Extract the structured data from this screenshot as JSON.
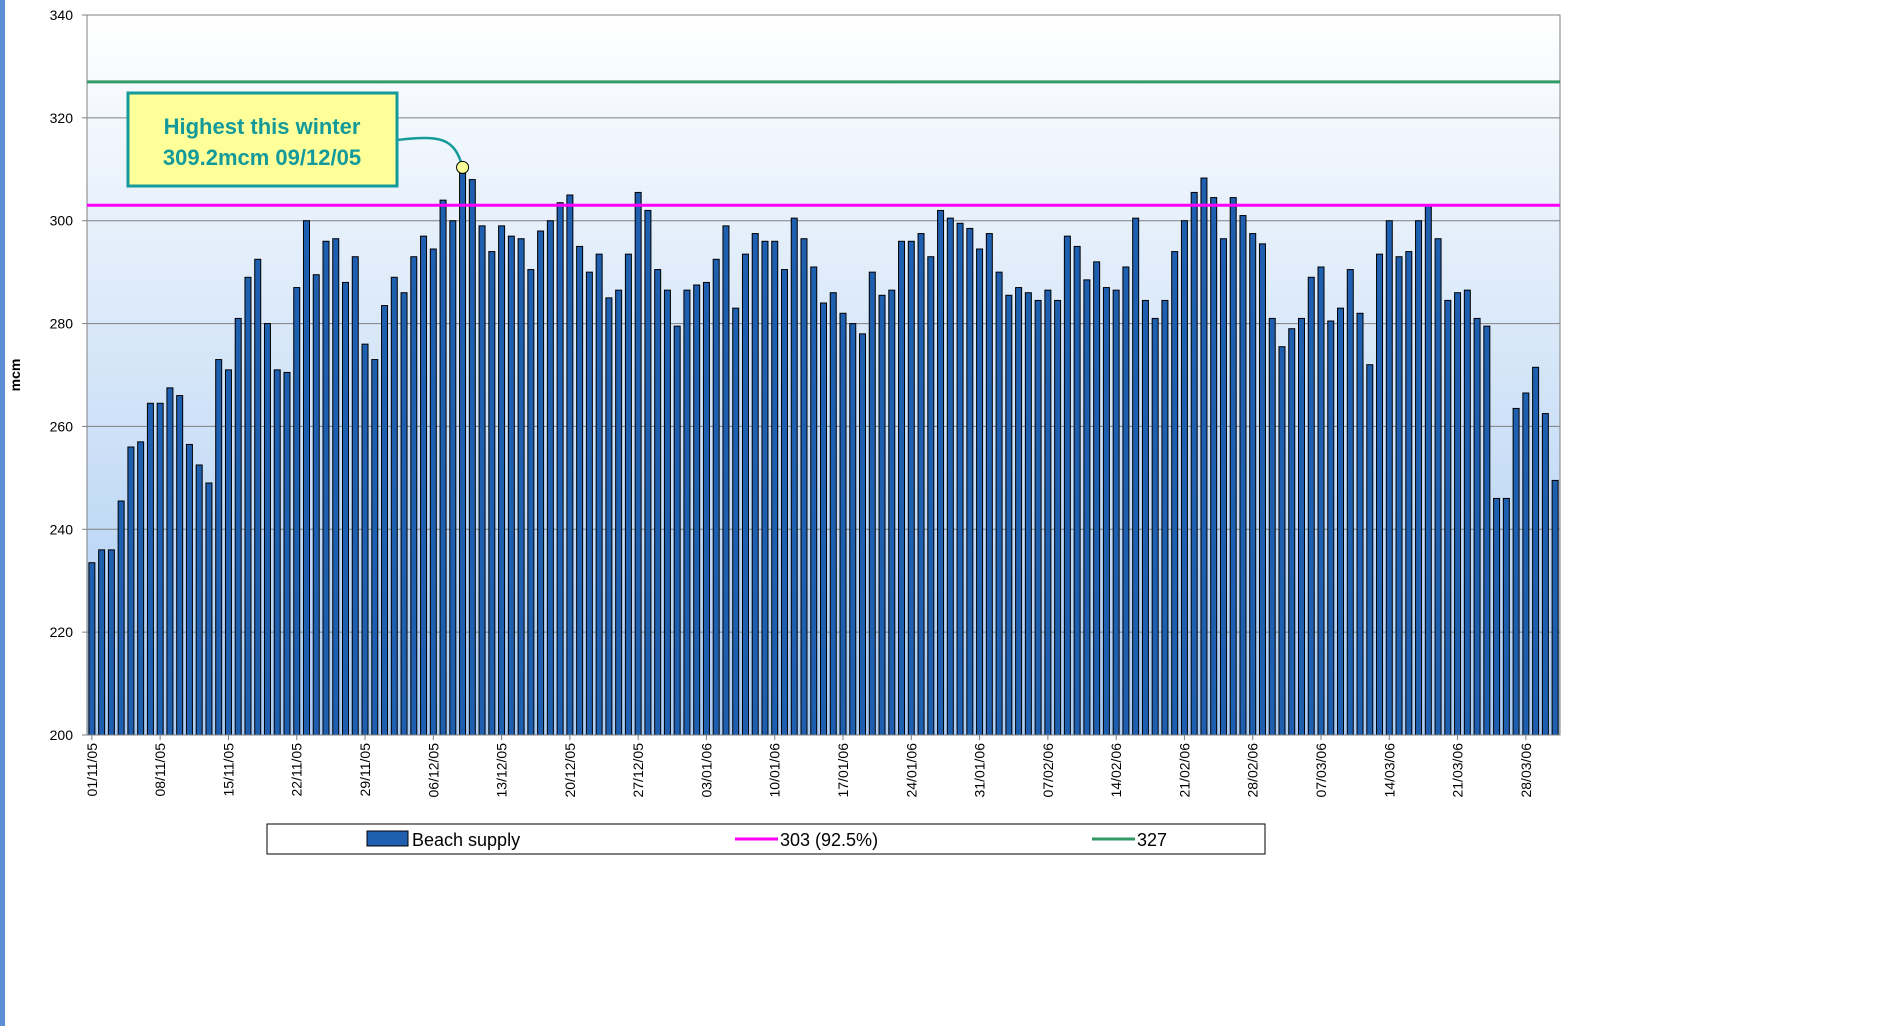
{
  "chart_data": {
    "type": "bar",
    "y_label": "mcm",
    "ylim": [
      200,
      340
    ],
    "yticks": [
      200,
      220,
      240,
      260,
      280,
      300,
      320,
      340
    ],
    "grid": true,
    "categories": [
      "01/11/05",
      null,
      null,
      null,
      null,
      null,
      null,
      "08/11/05",
      null,
      null,
      null,
      null,
      null,
      null,
      "15/11/05",
      null,
      null,
      null,
      null,
      null,
      null,
      "22/11/05",
      null,
      null,
      null,
      null,
      null,
      null,
      "29/11/05",
      null,
      null,
      null,
      null,
      null,
      null,
      "06/12/05",
      null,
      null,
      null,
      null,
      null,
      null,
      "13/12/05",
      null,
      null,
      null,
      null,
      null,
      null,
      "20/12/05",
      null,
      null,
      null,
      null,
      null,
      null,
      "27/12/05",
      null,
      null,
      null,
      null,
      null,
      null,
      "03/01/06",
      null,
      null,
      null,
      null,
      null,
      null,
      "10/01/06",
      null,
      null,
      null,
      null,
      null,
      null,
      "17/01/06",
      null,
      null,
      null,
      null,
      null,
      null,
      "24/01/06",
      null,
      null,
      null,
      null,
      null,
      null,
      "31/01/06",
      null,
      null,
      null,
      null,
      null,
      null,
      "07/02/06",
      null,
      null,
      null,
      null,
      null,
      null,
      "14/02/06",
      null,
      null,
      null,
      null,
      null,
      null,
      "21/02/06",
      null,
      null,
      null,
      null,
      null,
      null,
      "28/02/06",
      null,
      null,
      null,
      null,
      null,
      null,
      "07/03/06",
      null,
      null,
      null,
      null,
      null,
      null,
      "14/03/06",
      null,
      null,
      null,
      null,
      null,
      null,
      "21/03/06",
      null,
      null,
      null,
      null,
      null,
      null,
      "28/03/06",
      null,
      null,
      null
    ],
    "series": [
      {
        "name": "Beach supply",
        "color": "#1f5fb0",
        "values": [
          233.5,
          236,
          236,
          245.5,
          256,
          257,
          264.5,
          264.5,
          267.5,
          266,
          256.5,
          252.5,
          249,
          273,
          271,
          281,
          289,
          292.5,
          280,
          271,
          270.5,
          287,
          300,
          289.5,
          296,
          296.5,
          288,
          293,
          276,
          273,
          283.5,
          289,
          286,
          293,
          297,
          294.5,
          304,
          300,
          309.2,
          308,
          299,
          294,
          299,
          297,
          296.5,
          290.5,
          298,
          300,
          303.5,
          305,
          295,
          290,
          293.5,
          285,
          286.5,
          293.5,
          305.5,
          302,
          290.5,
          286.5,
          279.5,
          286.5,
          287.5,
          288,
          292.5,
          299,
          283,
          293.5,
          297.5,
          296,
          296,
          290.5,
          300.5,
          296.5,
          291,
          284,
          286,
          282,
          280,
          278,
          290,
          285.5,
          286.5,
          296,
          296,
          297.5,
          293,
          302,
          300.5,
          299.5,
          298.5,
          294.5,
          297.5,
          290,
          285.5,
          287,
          286,
          284.5,
          286.5,
          284.5,
          297,
          295,
          288.5,
          292,
          287,
          286.5,
          291,
          300.5,
          284.5,
          281,
          284.5,
          294,
          300,
          305.5,
          308.3,
          304.5,
          296.5,
          304.5,
          301,
          297.5,
          295.5,
          281,
          275.5,
          279,
          281,
          289,
          291,
          280.5,
          283,
          290.5,
          282,
          272,
          293.5,
          300,
          293,
          294,
          300,
          303,
          296.5,
          284.5,
          286,
          286.5,
          281,
          279.5,
          246,
          246,
          263.5,
          266.5,
          271.5,
          262.5,
          249.5
        ]
      }
    ],
    "reference_lines": [
      {
        "name": "303 (92.5%)",
        "value": 303,
        "color": "#ff00ff"
      },
      {
        "name": "327",
        "value": 327,
        "color": "#339966"
      }
    ],
    "annotation": [
      "Highest this winter",
      "309.2mcm 09/12/05"
    ]
  }
}
